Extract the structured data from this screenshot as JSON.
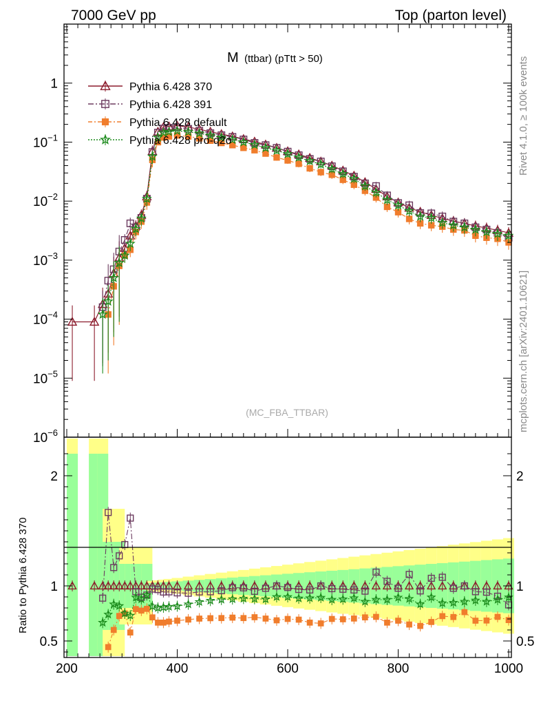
{
  "header": {
    "left": "7000 GeV pp",
    "right": "Top (parton level)"
  },
  "side_text": {
    "upper": "Rivet 4.1.0, ≥ 100k events",
    "lower": "mcplots.cern.ch [arXiv:2401.10621]"
  },
  "chart_data": {
    "type": "line",
    "title_main": "M",
    "title_sub": "(ttbar) (pTtt > 50)",
    "analysis_label": "(MC_FBA_TTBAR)",
    "xlim": [
      195,
      1005
    ],
    "ylim_log": [
      1e-06,
      10
    ],
    "ratio_ylim": [
      0.35,
      2.35
    ],
    "ratio_ylabel": "Ratio to Pythia 6.428 370",
    "x_ticks": [
      200,
      400,
      600,
      800,
      1000
    ],
    "y_ticks": [
      {
        "base": "10",
        "exp": "−6",
        "value": 1e-06
      },
      {
        "base": "10",
        "exp": "−5",
        "value": 1e-05
      },
      {
        "base": "10",
        "exp": "−4",
        "value": 0.0001
      },
      {
        "base": "10",
        "exp": "−3",
        "value": 0.001
      },
      {
        "base": "10",
        "exp": "−2",
        "value": 0.01
      },
      {
        "base": "10",
        "exp": "−1",
        "value": 0.1
      },
      {
        "base": "1",
        "exp": "",
        "value": 1
      }
    ],
    "ratio_ticks": [
      {
        "label": "0.5",
        "value": 0.5
      },
      {
        "label": "1",
        "value": 1
      },
      {
        "label": "2",
        "value": 2
      }
    ],
    "legend_position": "top-left",
    "series": [
      {
        "name": "Pythia 6.428 370",
        "color": "#8b1a2b",
        "marker": "triangle",
        "dash": "",
        "scale": 1.0,
        "x": [
          210,
          250,
          265,
          275,
          285,
          295,
          305,
          315,
          325,
          335,
          345,
          355,
          365,
          375,
          385,
          400,
          420,
          440,
          460,
          480,
          500,
          520,
          540,
          560,
          580,
          600,
          620,
          640,
          660,
          680,
          700,
          720,
          740,
          760,
          780,
          800,
          820,
          840,
          860,
          880,
          900,
          920,
          940,
          960,
          980,
          1000
        ],
        "y": [
          9e-05,
          9e-05,
          0.00018,
          0.00027,
          0.0006,
          0.0011,
          0.0016,
          0.0026,
          0.0038,
          0.0058,
          0.012,
          0.07,
          0.15,
          0.18,
          0.185,
          0.19,
          0.18,
          0.165,
          0.15,
          0.137,
          0.125,
          0.113,
          0.102,
          0.091,
          0.08,
          0.07,
          0.062,
          0.054,
          0.047,
          0.04,
          0.033,
          0.027,
          0.021,
          0.016,
          0.012,
          0.0095,
          0.0077,
          0.0066,
          0.0058,
          0.0051,
          0.0046,
          0.0042,
          0.0038,
          0.0035,
          0.0032,
          0.0029
        ]
      },
      {
        "name": "Pythia 6.428 391",
        "color": "#6b3a5e",
        "marker": "square",
        "dash": "8,3,2,3",
        "scale": 0.97,
        "x": [
          265,
          275,
          285,
          295,
          305,
          315,
          325,
          335,
          345,
          355,
          365,
          375,
          385,
          400,
          420,
          440,
          460,
          480,
          500,
          520,
          540,
          560,
          580,
          600,
          620,
          640,
          660,
          680,
          700,
          720,
          740,
          760,
          780,
          800,
          820,
          840,
          860,
          880,
          900,
          920,
          940,
          960,
          980,
          1000
        ],
        "y": [
          0.00016,
          0.00045,
          0.0007,
          0.0014,
          0.0022,
          0.0042,
          0.0036,
          0.0052,
          0.011,
          0.068,
          0.145,
          0.17,
          0.175,
          0.178,
          0.168,
          0.156,
          0.142,
          0.131,
          0.123,
          0.111,
          0.097,
          0.089,
          0.08,
          0.069,
          0.06,
          0.052,
          0.047,
          0.039,
          0.032,
          0.026,
          0.02,
          0.018,
          0.0125,
          0.0093,
          0.0085,
          0.0063,
          0.0062,
          0.0055,
          0.0045,
          0.0042,
          0.0036,
          0.0033,
          0.0029,
          0.0024
        ]
      },
      {
        "name": "Pythia 6.428 default",
        "color": "#f07d2c",
        "marker": "filled-square",
        "dash": "6,3,2,3",
        "scale": 0.72,
        "x": [
          275,
          285,
          295,
          305,
          315,
          325,
          335,
          345,
          355,
          365,
          375,
          385,
          400,
          420,
          440,
          460,
          480,
          500,
          520,
          540,
          560,
          580,
          600,
          620,
          640,
          660,
          680,
          700,
          720,
          740,
          760,
          780,
          800,
          820,
          840,
          860,
          880,
          900,
          920,
          940,
          960,
          980,
          1000
        ],
        "y": [
          0.00012,
          0.00036,
          0.0008,
          0.0012,
          0.0015,
          0.003,
          0.0045,
          0.0095,
          0.05,
          0.1,
          0.12,
          0.125,
          0.13,
          0.125,
          0.116,
          0.106,
          0.097,
          0.089,
          0.08,
          0.073,
          0.064,
          0.055,
          0.049,
          0.043,
          0.036,
          0.031,
          0.028,
          0.023,
          0.019,
          0.015,
          0.0115,
          0.008,
          0.0065,
          0.005,
          0.0042,
          0.0039,
          0.0037,
          0.0033,
          0.0032,
          0.0026,
          0.0024,
          0.0023,
          0.002
        ]
      },
      {
        "name": "Pythia 6.428 pro-q2o",
        "color": "#1b8a1b",
        "marker": "star",
        "dash": "2,2",
        "scale": 0.86,
        "x": [
          265,
          275,
          285,
          295,
          305,
          315,
          325,
          335,
          345,
          355,
          365,
          375,
          385,
          400,
          420,
          440,
          460,
          480,
          500,
          520,
          540,
          560,
          580,
          600,
          620,
          640,
          660,
          680,
          700,
          720,
          740,
          760,
          780,
          800,
          820,
          840,
          860,
          880,
          900,
          920,
          940,
          960,
          980,
          1000
        ],
        "y": [
          0.00012,
          0.0002,
          0.0005,
          0.0009,
          0.0012,
          0.0019,
          0.0034,
          0.0051,
          0.011,
          0.057,
          0.12,
          0.145,
          0.15,
          0.155,
          0.15,
          0.141,
          0.13,
          0.12,
          0.11,
          0.1,
          0.09,
          0.08,
          0.072,
          0.063,
          0.055,
          0.048,
          0.042,
          0.035,
          0.029,
          0.024,
          0.018,
          0.014,
          0.0105,
          0.0085,
          0.0068,
          0.0055,
          0.0052,
          0.0043,
          0.0039,
          0.0036,
          0.0033,
          0.003,
          0.0028,
          0.0026
        ]
      }
    ]
  }
}
